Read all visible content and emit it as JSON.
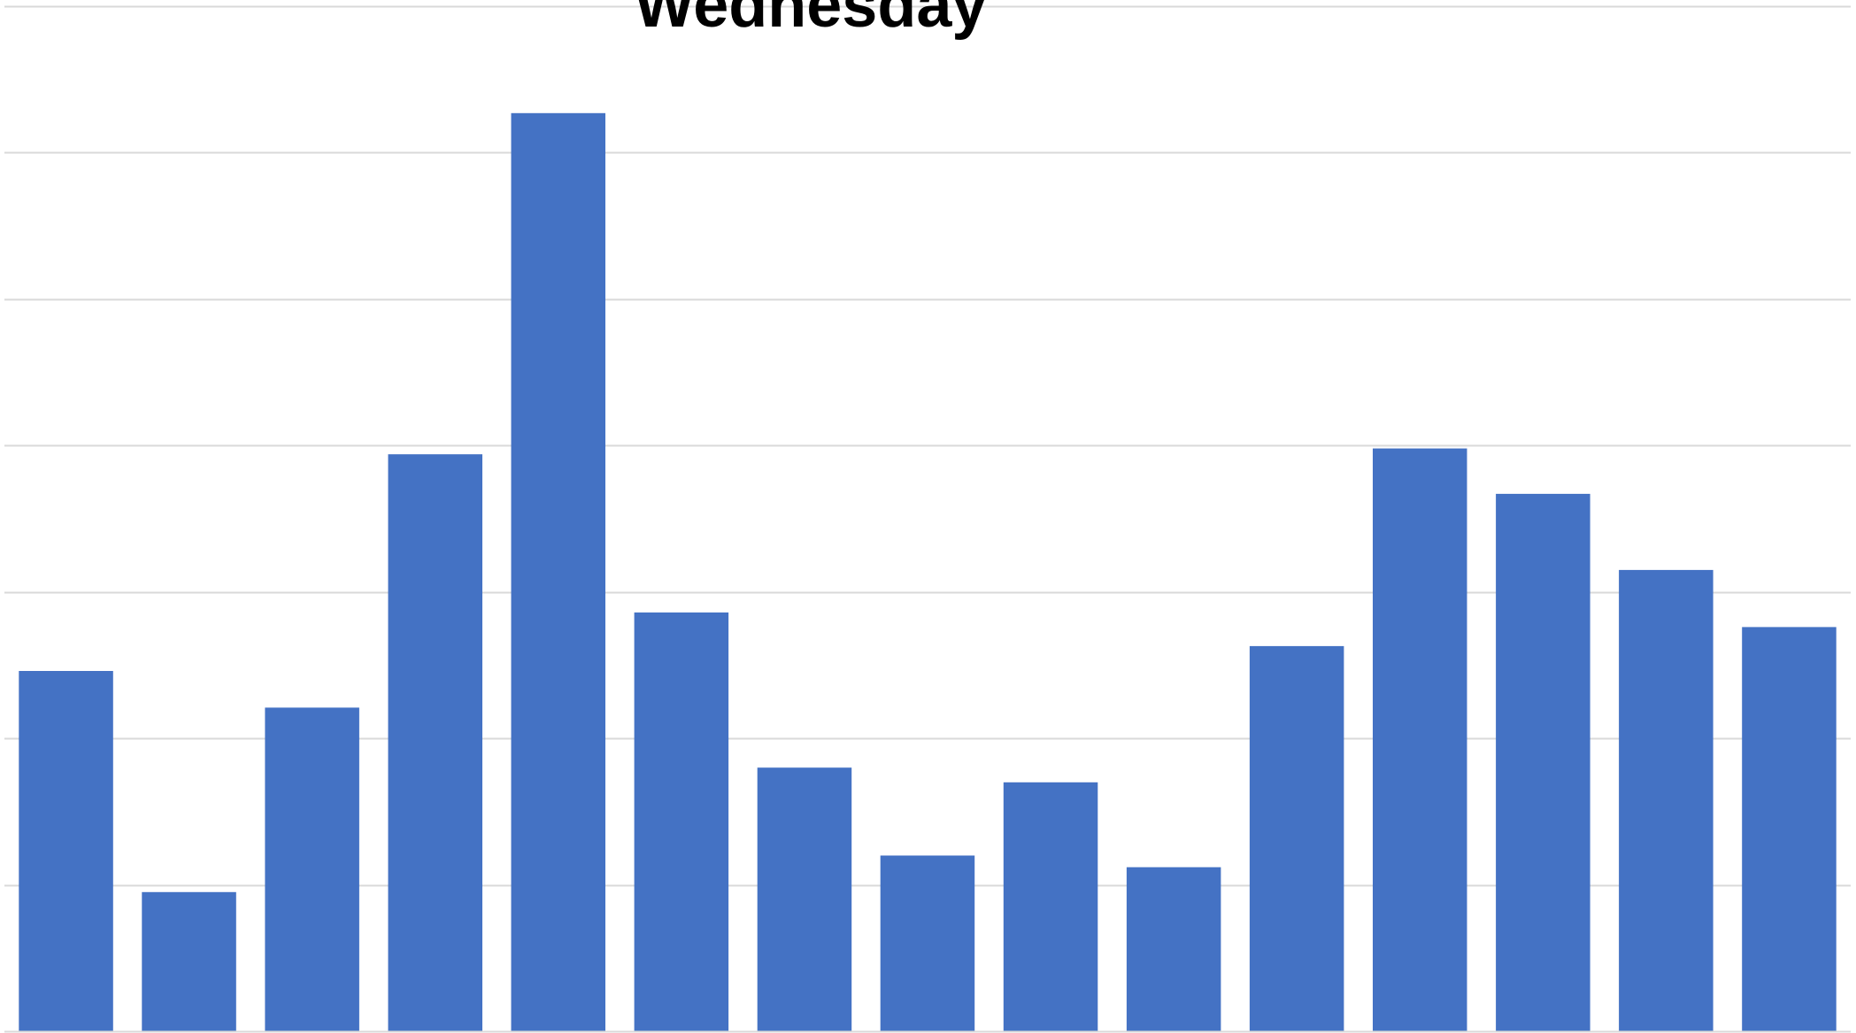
{
  "chart_data": {
    "type": "bar",
    "title": "Wednesday",
    "xlabel": "",
    "ylabel": "",
    "ylim": [
      0,
      7
    ],
    "grid": true,
    "categories": [
      "",
      "",
      "",
      "",
      "",
      "",
      "",
      "",
      "",
      "",
      "",
      "",
      "",
      "",
      ""
    ],
    "values": [
      2.46,
      0.95,
      2.21,
      3.94,
      6.27,
      2.86,
      1.8,
      1.2,
      1.7,
      1.12,
      2.63,
      3.98,
      3.67,
      3.15,
      2.76
    ],
    "colors": {
      "bar": "#4472c4",
      "grid": "#d9d9d9",
      "title": "#000000"
    },
    "legend": "none"
  }
}
